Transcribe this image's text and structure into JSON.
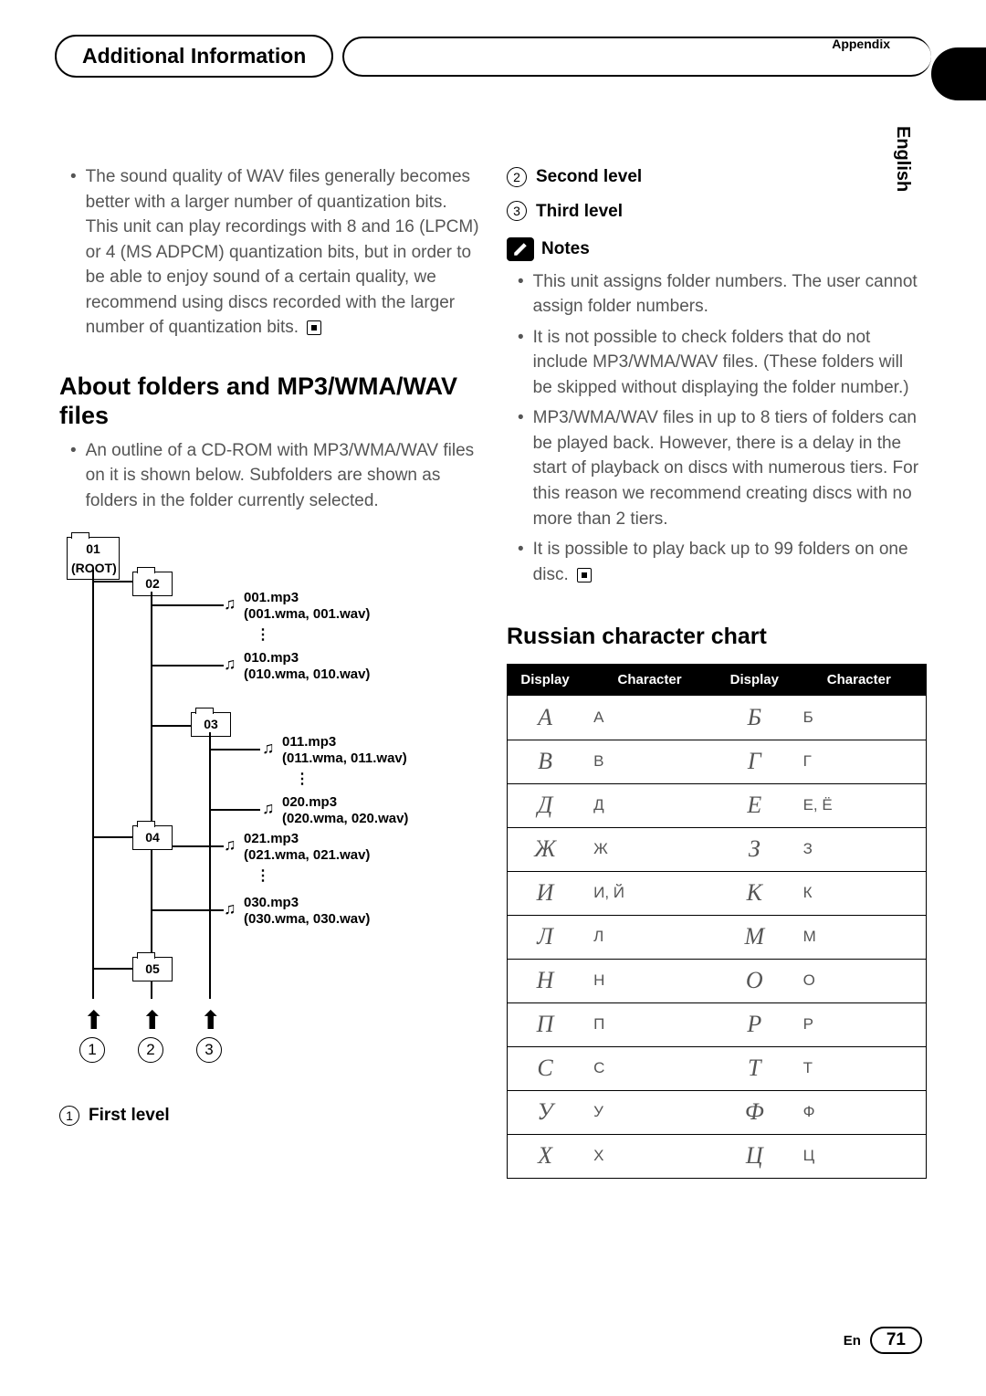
{
  "header": {
    "title": "Additional Information",
    "appendix": "Appendix",
    "language_tab": "English"
  },
  "left": {
    "wav_bullet": "The sound quality of WAV files generally becomes better with a larger number of quantization bits. This unit can play recordings with 8 and 16 (LPCM) or 4 (MS ADPCM) quantization bits, but in order to be able to enjoy sound of a certain quality, we recommend using discs recorded with the larger number of quantization bits.",
    "folders_heading": "About folders and MP3/WMA/WAV files",
    "folders_bullet": "An outline of a CD-ROM with MP3/WMA/WAV files on it is shown below. Subfolders are shown as folders in the folder currently selected.",
    "diagram": {
      "root": "01\n(ROOT)",
      "f02": "02",
      "f03": "03",
      "f04": "04",
      "f05": "05",
      "file001a": "001.mp3",
      "file001b": "(001.wma, 001.wav)",
      "file010a": "010.mp3",
      "file010b": "(010.wma, 010.wav)",
      "file011a": "011.mp3",
      "file011b": "(011.wma, 011.wav)",
      "file020a": "020.mp3",
      "file020b": "(020.wma, 020.wav)",
      "file021a": "021.mp3",
      "file021b": "(021.wma, 021.wav)",
      "file030a": "030.mp3",
      "file030b": "(030.wma, 030.wav)",
      "level1_num": "1",
      "level2_num": "2",
      "level3_num": "3"
    },
    "first_level_num": "1",
    "first_level_label": "First level"
  },
  "right": {
    "second_level_num": "2",
    "second_level_label": "Second level",
    "third_level_num": "3",
    "third_level_label": "Third level",
    "notes_label": "Notes",
    "notes": [
      "This unit assigns folder numbers. The user cannot assign folder numbers.",
      "It is not possible to check folders that do not include MP3/WMA/WAV files. (These folders will be skipped without displaying the folder number.)",
      "MP3/WMA/WAV files in up to 8 tiers of folders can be played back. However, there is a delay in the start of playback on discs with numerous tiers. For this reason we recommend creating discs with no more than 2 tiers.",
      "It is possible to play back up to 99 folders on one disc."
    ],
    "chart_heading": "Russian character chart",
    "chart": {
      "headers": [
        "Display",
        "Character",
        "Display",
        "Character"
      ],
      "rows": [
        [
          "А",
          "А",
          "Б",
          "Б"
        ],
        [
          "В",
          "В",
          "Г",
          "Г"
        ],
        [
          "Д",
          "Д",
          "Е",
          "Е, Ё"
        ],
        [
          "Ж",
          "Ж",
          "З",
          "З"
        ],
        [
          "И",
          "И, Й",
          "К",
          "К"
        ],
        [
          "Л",
          "Л",
          "М",
          "М"
        ],
        [
          "Н",
          "Н",
          "О",
          "О"
        ],
        [
          "П",
          "П",
          "Р",
          "Р"
        ],
        [
          "С",
          "С",
          "Т",
          "Т"
        ],
        [
          "У",
          "У",
          "Ф",
          "Ф"
        ],
        [
          "Х",
          "Х",
          "Ц",
          "Ц"
        ]
      ]
    }
  },
  "footer": {
    "lang": "En",
    "page": "71"
  }
}
